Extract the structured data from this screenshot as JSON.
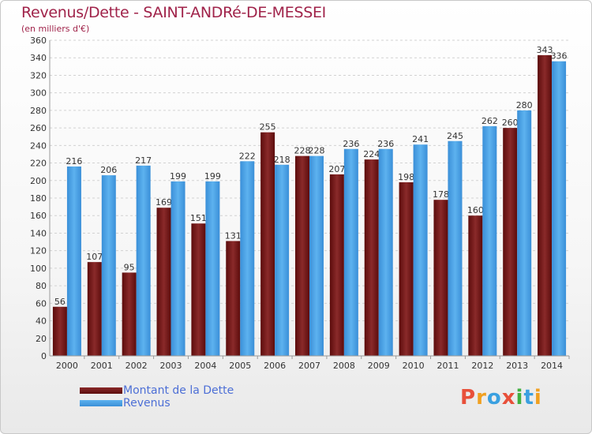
{
  "chart_data": {
    "type": "bar",
    "title": "Revenus/Dette - SAINT-ANDRé-DE-MESSEI",
    "subtitle": "(en milliers d'€)",
    "categories": [
      "2000",
      "2001",
      "2002",
      "2003",
      "2004",
      "2005",
      "2006",
      "2007",
      "2008",
      "2009",
      "2010",
      "2011",
      "2012",
      "2013",
      "2014"
    ],
    "series": [
      {
        "name": "Montant de la Dette",
        "values": [
          56,
          107,
          95,
          169,
          151,
          131,
          255,
          228,
          207,
          224,
          198,
          178,
          160,
          260,
          343
        ],
        "color": "#7a1a1a"
      },
      {
        "name": "Revenus",
        "values": [
          216,
          206,
          217,
          199,
          199,
          222,
          218,
          228,
          236,
          236,
          241,
          245,
          262,
          280,
          336
        ],
        "color": "#4a9fe0"
      }
    ],
    "ylim": [
      0,
      360
    ],
    "yticks": [
      0,
      20,
      40,
      60,
      80,
      100,
      120,
      140,
      160,
      180,
      200,
      220,
      240,
      260,
      280,
      300,
      320,
      340,
      360
    ],
    "grid": true,
    "legend": "bottom-left"
  },
  "logo": {
    "text": "Proxiti",
    "colors": [
      "#e8503a",
      "#f0a020",
      "#3aa0e0",
      "#e8503a",
      "#40b040",
      "#3aa0e0",
      "#f0a020"
    ]
  }
}
